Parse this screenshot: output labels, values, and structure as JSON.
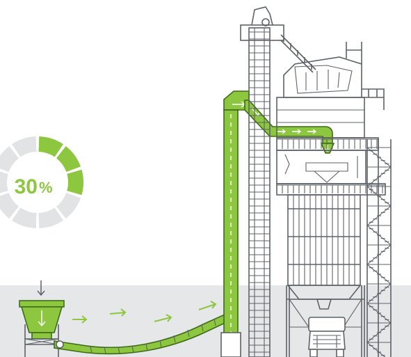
{
  "progress": {
    "label": "30%",
    "number": "30",
    "unit": "%",
    "value": 0.3,
    "segments_total": 10,
    "segments_active": 3
  },
  "colors": {
    "accent": "#8dc63f",
    "accent_dark": "#3d6b17",
    "track": "#e1e3e4",
    "ground": "#e5e7e8",
    "ink": "#5d6268"
  },
  "icons": {
    "flow_arrow": "arrow-right-icon",
    "feed_arrow": "arrow-down-icon",
    "truck": "dump-truck-icon"
  }
}
